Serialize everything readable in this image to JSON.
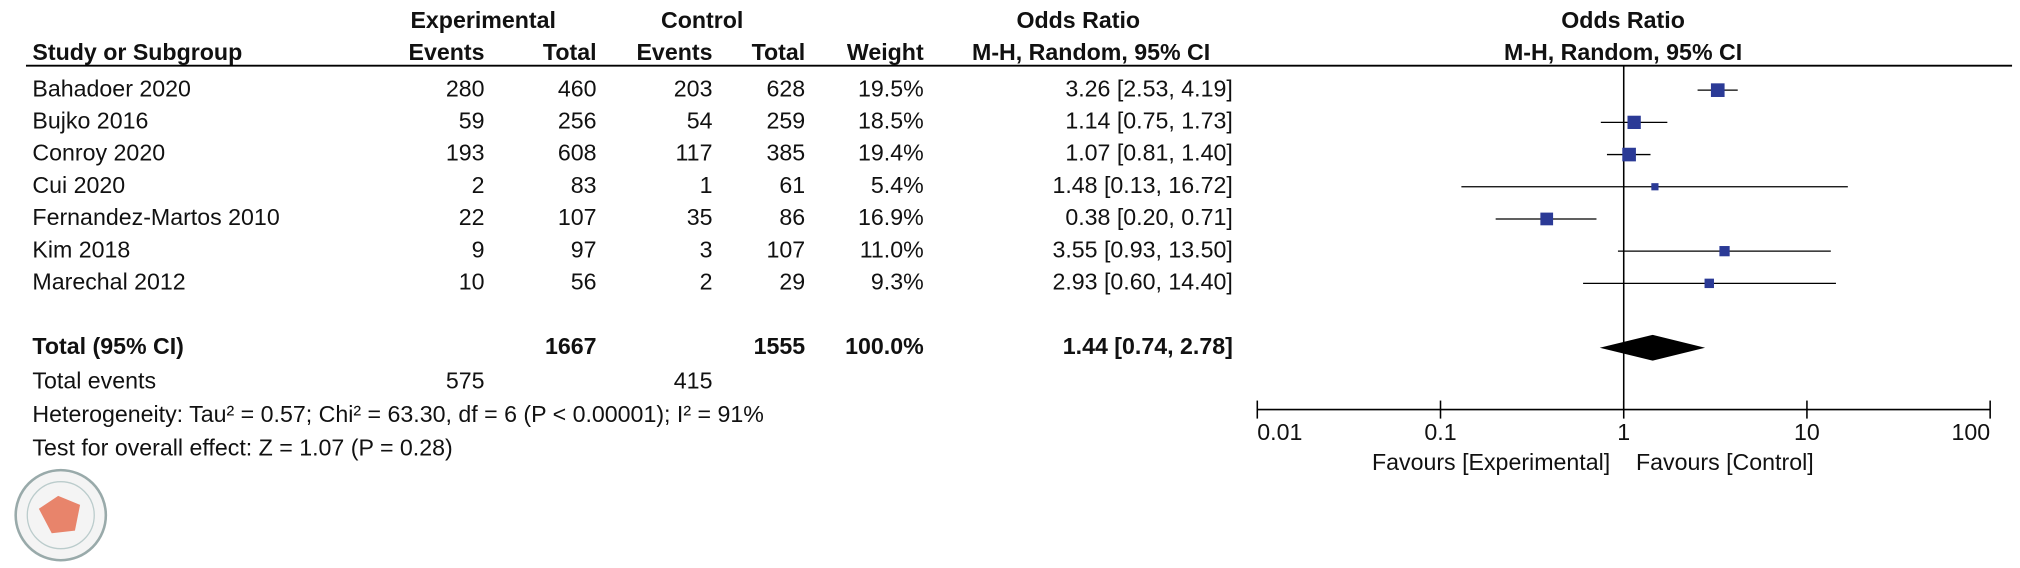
{
  "chart_data": {
    "type": "forest",
    "headers": {
      "experimental": "Experimental",
      "control": "Control",
      "odds_ratio_left": "Odds Ratio",
      "odds_ratio_right": "Odds Ratio",
      "study": "Study or Subgroup",
      "events_exp": "Events",
      "total_exp": "Total",
      "events_ctl": "Events",
      "total_ctl": "Total",
      "weight": "Weight",
      "method_left": "M-H, Random, 95% CI",
      "method_right": "M-H, Random, 95% CI"
    },
    "studies": [
      "Bahadoer 2020",
      "Bujko 2016",
      "Conroy 2020",
      "Cui 2020",
      "Fernandez-Martos 2010",
      "Kim 2018",
      "Marechal 2012"
    ],
    "exp_events": [
      280,
      59,
      193,
      2,
      22,
      9,
      10
    ],
    "exp_total": [
      460,
      256,
      608,
      83,
      107,
      97,
      56
    ],
    "ctl_events": [
      203,
      54,
      117,
      1,
      35,
      3,
      2
    ],
    "ctl_total": [
      628,
      259,
      385,
      61,
      86,
      107,
      29
    ],
    "weights": [
      19.5,
      18.5,
      19.4,
      5.4,
      16.9,
      11.0,
      9.3
    ],
    "weight_labels": [
      "19.5%",
      "18.5%",
      "19.4%",
      "5.4%",
      "16.9%",
      "11.0%",
      "9.3%"
    ],
    "or": [
      3.26,
      1.14,
      1.07,
      1.48,
      0.38,
      3.55,
      2.93
    ],
    "ci_low": [
      2.53,
      0.75,
      0.81,
      0.13,
      0.2,
      0.93,
      0.6
    ],
    "ci_high": [
      4.19,
      1.73,
      1.4,
      16.72,
      0.71,
      13.5,
      14.4
    ],
    "ci_labels": [
      "3.26 [2.53, 4.19]",
      "1.14 [0.75, 1.73]",
      "1.07 [0.81, 1.40]",
      "1.48 [0.13, 16.72]",
      "0.38 [0.20, 0.71]",
      "3.55 [0.93, 13.50]",
      "2.93 [0.60, 14.40]"
    ],
    "total": {
      "label": "Total (95% CI)",
      "exp_total": 1667,
      "ctl_total": 1555,
      "weight": 100.0,
      "weight_label": "100.0%",
      "or": 1.44,
      "ci_low": 0.74,
      "ci_high": 2.78,
      "ci_label": "1.44 [0.74, 2.78]"
    },
    "total_events": {
      "label": "Total events",
      "exp": 575,
      "ctl": 415
    },
    "heterogeneity": "Heterogeneity: Tau² = 0.57; Chi² = 63.30, df = 6 (P < 0.00001); I² = 91%",
    "overall_effect": "Test for overall effect: Z = 1.07 (P = 0.28)",
    "xlim": [
      0.01,
      100
    ],
    "xticks": [
      0.01,
      0.1,
      1,
      10,
      100
    ],
    "log_scale": true,
    "favours_left": "Favours [Experimental]",
    "favours_right": "Favours [Control]",
    "color": "#2b3a96"
  }
}
